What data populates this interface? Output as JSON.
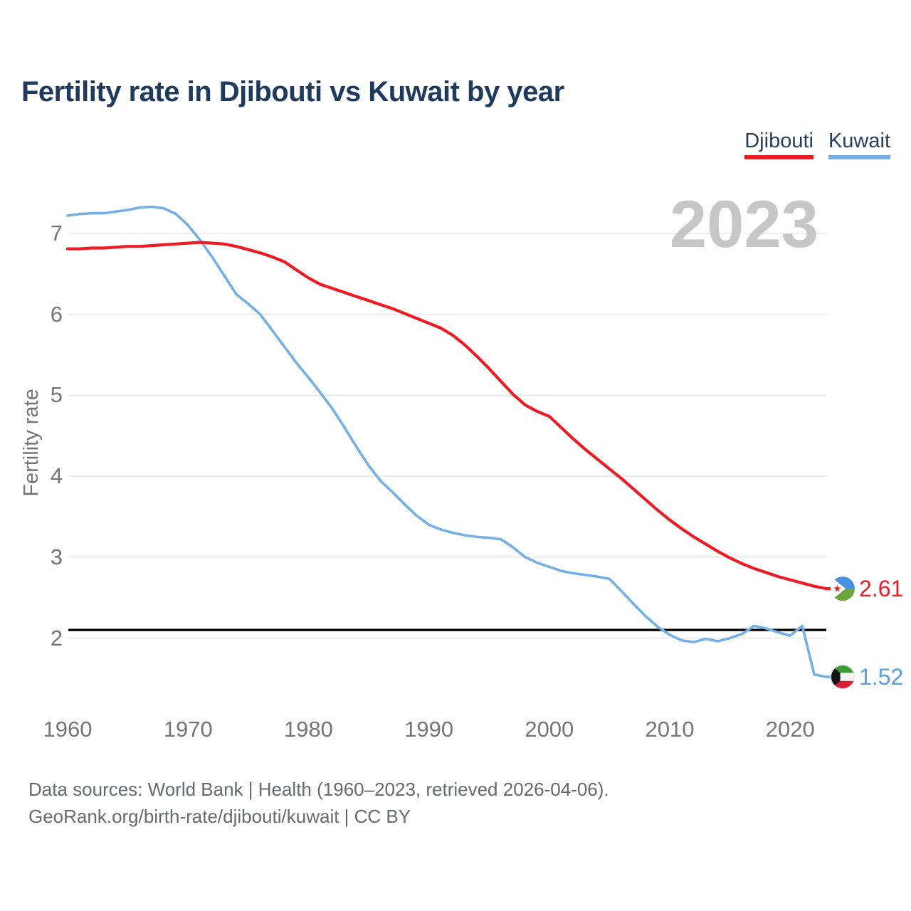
{
  "title": "Fertility rate in Djibouti vs Kuwait by year",
  "watermark": "2023",
  "legend": [
    {
      "label": "Djibouti",
      "color": "#ed1c24"
    },
    {
      "label": "Kuwait",
      "color": "#74b0e4"
    }
  ],
  "end_labels": [
    {
      "value": "2.61",
      "color": "#ed1c24",
      "flag": "djibouti-flag-icon"
    },
    {
      "value": "1.52",
      "color": "#5c9fd9",
      "flag": "kuwait-flag-icon"
    }
  ],
  "footer": {
    "line1": "Data sources: World Bank | Health (1960–2023, retrieved 2026-04-06).",
    "line2": "GeoRank.org/birth-rate/djibouti/kuwait | CC BY"
  },
  "chart_data": {
    "type": "line",
    "title": "Fertility rate in Djibouti vs Kuwait by year",
    "xlabel": "",
    "ylabel": "Fertility rate",
    "x_ticks": [
      1960,
      1970,
      1980,
      1990,
      2000,
      2010,
      2020
    ],
    "y_ticks": [
      2,
      3,
      4,
      5,
      6,
      7
    ],
    "xlim": [
      1960,
      2023
    ],
    "ylim": [
      1.4,
      7.5
    ],
    "grid": "horizontal",
    "legend_position": "top-right",
    "reference_line": {
      "value": 2.1,
      "color": "#000000"
    },
    "x": [
      1960,
      1961,
      1962,
      1963,
      1964,
      1965,
      1966,
      1967,
      1968,
      1969,
      1970,
      1971,
      1972,
      1973,
      1974,
      1975,
      1976,
      1977,
      1978,
      1979,
      1980,
      1981,
      1982,
      1983,
      1984,
      1985,
      1986,
      1987,
      1988,
      1989,
      1990,
      1991,
      1992,
      1993,
      1994,
      1995,
      1996,
      1997,
      1998,
      1999,
      2000,
      2001,
      2002,
      2003,
      2004,
      2005,
      2006,
      2007,
      2008,
      2009,
      2010,
      2011,
      2012,
      2013,
      2014,
      2015,
      2016,
      2017,
      2018,
      2019,
      2020,
      2021,
      2022,
      2023
    ],
    "series": [
      {
        "name": "Djibouti",
        "color": "#ed1c24",
        "end_label": "2.61",
        "values": [
          6.81,
          6.81,
          6.82,
          6.82,
          6.83,
          6.84,
          6.84,
          6.85,
          6.86,
          6.87,
          6.88,
          6.89,
          6.88,
          6.87,
          6.84,
          6.8,
          6.76,
          6.71,
          6.65,
          6.55,
          6.45,
          6.37,
          6.32,
          6.27,
          6.22,
          6.17,
          6.12,
          6.07,
          6.01,
          5.95,
          5.89,
          5.83,
          5.74,
          5.62,
          5.48,
          5.33,
          5.17,
          5.01,
          4.88,
          4.8,
          4.74,
          4.6,
          4.46,
          4.33,
          4.21,
          4.09,
          3.97,
          3.84,
          3.71,
          3.58,
          3.46,
          3.35,
          3.25,
          3.16,
          3.07,
          2.99,
          2.92,
          2.86,
          2.81,
          2.76,
          2.72,
          2.68,
          2.64,
          2.61
        ]
      },
      {
        "name": "Kuwait",
        "color": "#74b0e4",
        "end_label": "1.52",
        "values": [
          7.22,
          7.24,
          7.25,
          7.25,
          7.27,
          7.29,
          7.32,
          7.33,
          7.31,
          7.24,
          7.1,
          6.92,
          6.71,
          6.48,
          6.25,
          6.13,
          6.0,
          5.8,
          5.6,
          5.4,
          5.22,
          5.03,
          4.83,
          4.6,
          4.36,
          4.13,
          3.94,
          3.8,
          3.65,
          3.51,
          3.4,
          3.34,
          3.3,
          3.27,
          3.25,
          3.24,
          3.22,
          3.12,
          3.0,
          2.93,
          2.88,
          2.83,
          2.8,
          2.78,
          2.76,
          2.73,
          2.58,
          2.42,
          2.27,
          2.14,
          2.04,
          1.97,
          1.95,
          1.99,
          1.96,
          2.0,
          2.05,
          2.15,
          2.12,
          2.07,
          2.03,
          2.15,
          1.55,
          1.52
        ]
      }
    ]
  }
}
